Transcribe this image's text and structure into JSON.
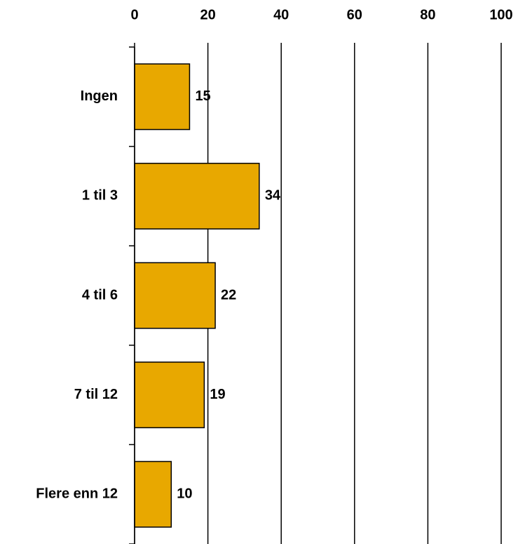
{
  "chart_data": {
    "type": "bar",
    "orientation": "horizontal",
    "categories": [
      "Ingen",
      "1 til 3",
      "4 til 6",
      "7 til 12",
      "Flere enn 12"
    ],
    "values": [
      15,
      34,
      22,
      19,
      10
    ],
    "color": "#e8a800",
    "xlim": [
      0,
      100
    ],
    "xticks": [
      0,
      20,
      40,
      60,
      80,
      100
    ],
    "grid": true
  }
}
